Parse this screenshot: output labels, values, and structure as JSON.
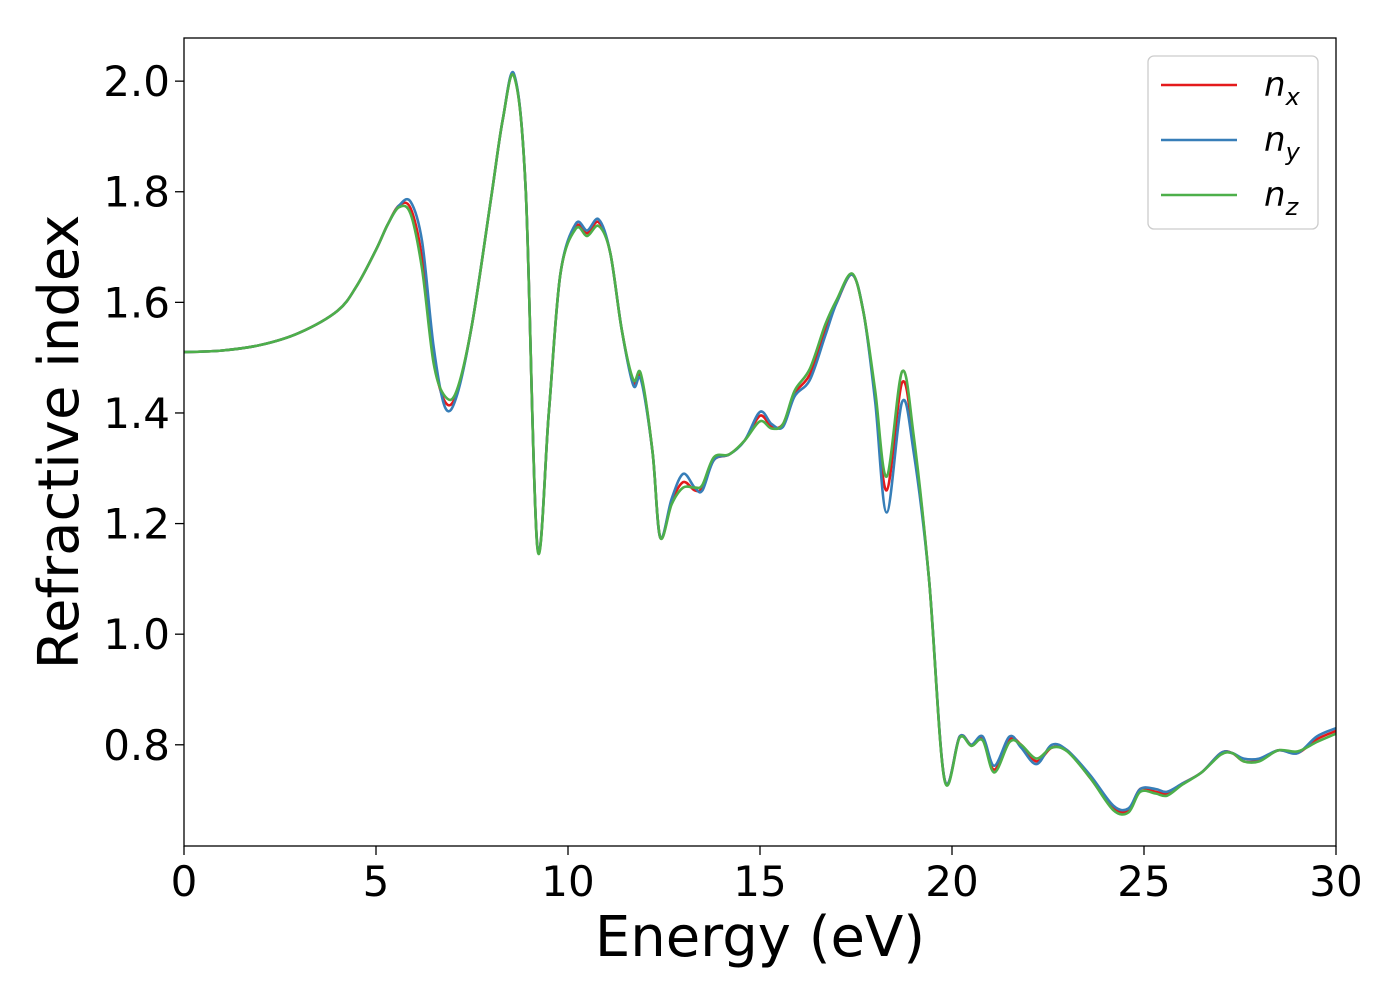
{
  "chart_data": {
    "type": "line",
    "title": "",
    "xlabel": "Energy (eV)",
    "ylabel": "Refractive index",
    "xlim": [
      0,
      30
    ],
    "ylim": [
      0.617,
      2.078
    ],
    "xticks": [
      0,
      5,
      10,
      15,
      20,
      25,
      30
    ],
    "xtick_labels": [
      "0",
      "5",
      "10",
      "15",
      "20",
      "25",
      "30"
    ],
    "yticks": [
      0.8,
      1.0,
      1.2,
      1.4,
      1.6,
      1.8,
      2.0
    ],
    "ytick_labels": [
      "0.8",
      "1.0",
      "1.2",
      "1.4",
      "1.6",
      "1.8",
      "2.0"
    ],
    "grid": false,
    "legend_position": "top-right",
    "x": [
      0,
      1,
      2,
      3,
      4,
      4.5,
      5,
      5.3,
      5.6,
      5.9,
      6.2,
      6.5,
      6.8,
      7.1,
      7.5,
      8.0,
      8.3,
      8.6,
      8.9,
      9.2,
      9.5,
      9.8,
      10.2,
      10.5,
      10.8,
      11.1,
      11.4,
      11.7,
      11.9,
      12.2,
      12.4,
      12.7,
      13.0,
      13.3,
      13.5,
      13.8,
      14.2,
      14.6,
      15.0,
      15.3,
      15.6,
      15.9,
      16.3,
      16.7,
      17.0,
      17.4,
      17.7,
      18.0,
      18.3,
      18.7,
      19.0,
      19.4,
      19.8,
      20.2,
      20.5,
      20.8,
      21.1,
      21.5,
      21.8,
      22.2,
      22.6,
      23.0,
      23.6,
      24.2,
      24.6,
      24.9,
      25.3,
      25.6,
      26.0,
      26.5,
      27.0,
      27.3,
      27.6,
      28.0,
      28.5,
      29.0,
      29.5,
      30.0
    ],
    "series": [
      {
        "name": "n_x",
        "color": "#e41a1c",
        "values": [
          1.51,
          1.513,
          1.523,
          1.545,
          1.585,
          1.63,
          1.695,
          1.74,
          1.775,
          1.77,
          1.68,
          1.5,
          1.42,
          1.435,
          1.56,
          1.79,
          1.93,
          2.01,
          1.8,
          1.16,
          1.4,
          1.65,
          1.737,
          1.725,
          1.745,
          1.69,
          1.55,
          1.455,
          1.465,
          1.33,
          1.175,
          1.24,
          1.275,
          1.26,
          1.265,
          1.315,
          1.325,
          1.35,
          1.395,
          1.375,
          1.38,
          1.435,
          1.47,
          1.55,
          1.6,
          1.65,
          1.58,
          1.43,
          1.26,
          1.455,
          1.35,
          1.1,
          0.74,
          0.815,
          0.8,
          0.81,
          0.755,
          0.81,
          0.8,
          0.77,
          0.795,
          0.79,
          0.74,
          0.685,
          0.682,
          0.72,
          0.715,
          0.712,
          0.73,
          0.75,
          0.785,
          0.785,
          0.77,
          0.772,
          0.79,
          0.785,
          0.81,
          0.825
        ]
      },
      {
        "name": "n_y",
        "color": "#377eb8",
        "values": [
          1.51,
          1.513,
          1.523,
          1.545,
          1.585,
          1.63,
          1.695,
          1.74,
          1.775,
          1.782,
          1.71,
          1.52,
          1.41,
          1.43,
          1.56,
          1.79,
          1.93,
          2.012,
          1.8,
          1.16,
          1.4,
          1.65,
          1.742,
          1.73,
          1.75,
          1.69,
          1.55,
          1.45,
          1.46,
          1.33,
          1.175,
          1.245,
          1.29,
          1.265,
          1.26,
          1.315,
          1.325,
          1.35,
          1.402,
          1.38,
          1.375,
          1.43,
          1.46,
          1.54,
          1.6,
          1.65,
          1.58,
          1.42,
          1.22,
          1.42,
          1.33,
          1.1,
          0.74,
          0.815,
          0.8,
          0.815,
          0.762,
          0.815,
          0.795,
          0.765,
          0.8,
          0.79,
          0.745,
          0.69,
          0.685,
          0.72,
          0.72,
          0.715,
          0.73,
          0.75,
          0.785,
          0.785,
          0.775,
          0.775,
          0.79,
          0.785,
          0.815,
          0.83
        ]
      },
      {
        "name": "n_z",
        "color": "#4daf4a",
        "values": [
          1.51,
          1.513,
          1.523,
          1.545,
          1.585,
          1.63,
          1.695,
          1.74,
          1.772,
          1.76,
          1.66,
          1.49,
          1.43,
          1.44,
          1.56,
          1.79,
          1.93,
          2.008,
          1.8,
          1.157,
          1.4,
          1.65,
          1.733,
          1.72,
          1.738,
          1.69,
          1.55,
          1.46,
          1.47,
          1.33,
          1.175,
          1.235,
          1.265,
          1.265,
          1.27,
          1.32,
          1.325,
          1.35,
          1.385,
          1.372,
          1.38,
          1.44,
          1.48,
          1.56,
          1.605,
          1.652,
          1.58,
          1.44,
          1.285,
          1.475,
          1.36,
          1.1,
          0.738,
          0.813,
          0.798,
          0.808,
          0.75,
          0.805,
          0.8,
          0.775,
          0.795,
          0.788,
          0.74,
          0.682,
          0.678,
          0.715,
          0.712,
          0.708,
          0.728,
          0.75,
          0.782,
          0.785,
          0.77,
          0.77,
          0.79,
          0.788,
          0.805,
          0.82
        ]
      }
    ]
  },
  "legend": {
    "entries": [
      {
        "base": "n",
        "sub": "x",
        "color": "#e41a1c"
      },
      {
        "base": "n",
        "sub": "y",
        "color": "#377eb8"
      },
      {
        "base": "n",
        "sub": "z",
        "color": "#4daf4a"
      }
    ]
  }
}
